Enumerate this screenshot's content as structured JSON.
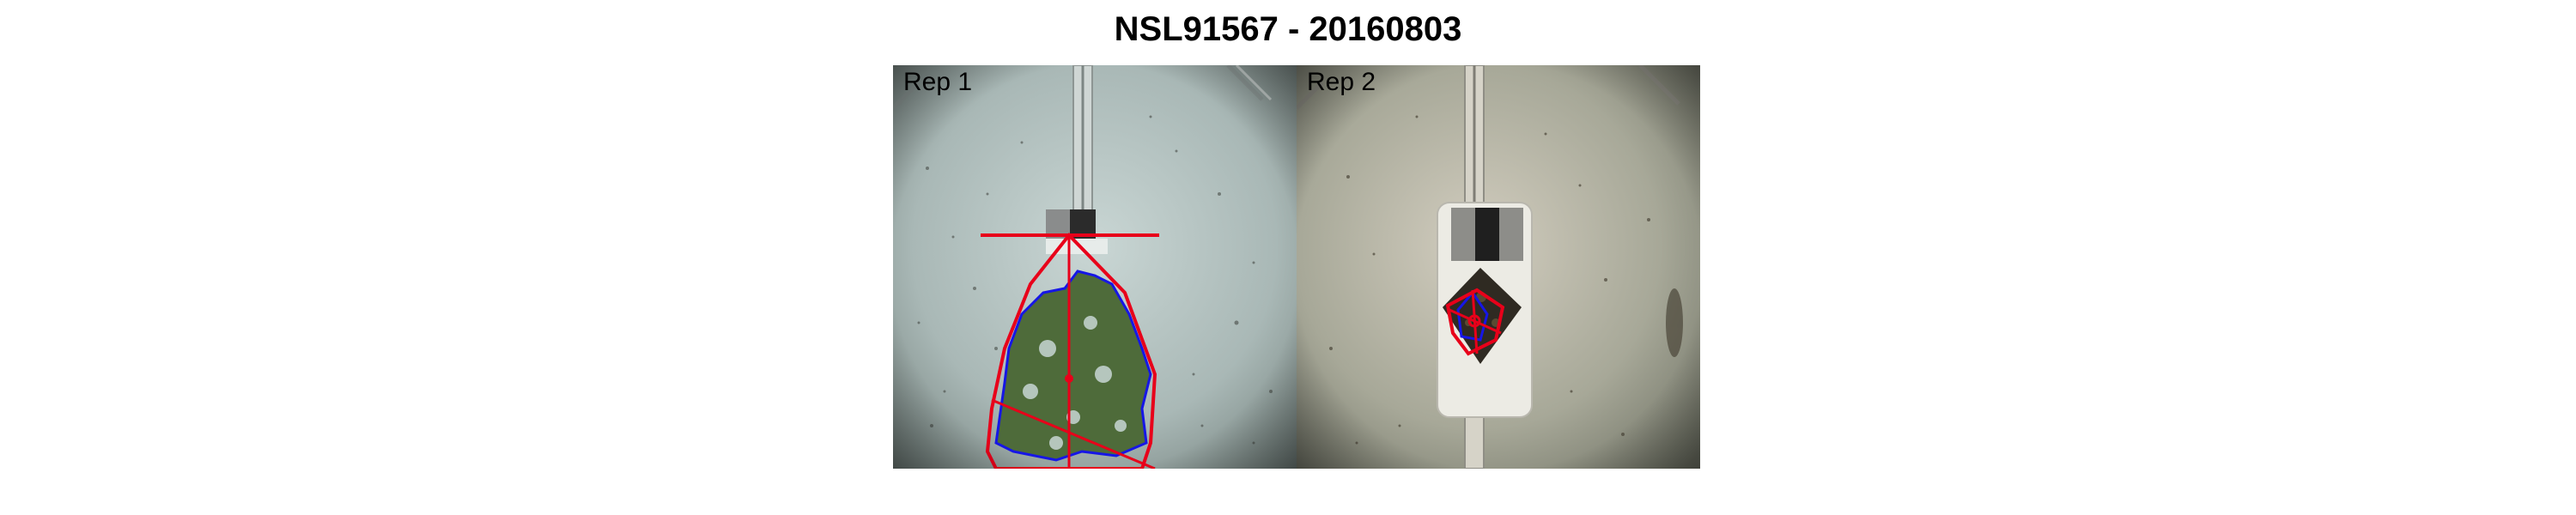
{
  "figure": {
    "title": "NSL91567 - 20160803"
  },
  "panels": [
    {
      "label": "Rep 1",
      "backdrop_color": "#a9b7b4",
      "overlay_colors": {
        "hull": "#e8001a",
        "contour": "#1616e6",
        "plant": "#4e6b3a"
      }
    },
    {
      "label": "Rep 2",
      "backdrop_color": "#a7a898",
      "overlay_colors": {
        "hull": "#e8001a",
        "contour": "#1616e6",
        "plant": "#2f2a22"
      }
    }
  ]
}
